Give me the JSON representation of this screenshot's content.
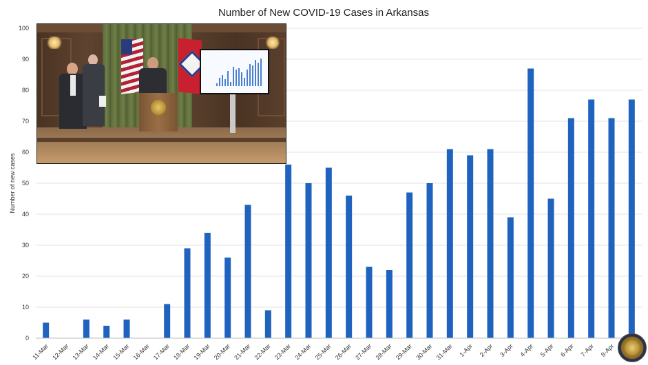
{
  "chart_data": {
    "type": "bar",
    "title": "Number of New COVID-19 Cases in Arkansas",
    "xlabel": "",
    "ylabel": "Number of new cases",
    "ylim": [
      0,
      100
    ],
    "yticks": [
      0,
      10,
      20,
      30,
      40,
      50,
      60,
      70,
      80,
      90,
      100
    ],
    "grid": true,
    "bar_color": "#1f63bf",
    "categories": [
      "11-Mar",
      "12-Mar",
      "13-Mar",
      "14-Mar",
      "15-Mar",
      "16-Mar",
      "17-Mar",
      "18-Mar",
      "19-Mar",
      "20-Mar",
      "21-Mar",
      "22-Mar",
      "23-Mar",
      "24-Mar",
      "25-Mar",
      "26-Mar",
      "27-Mar",
      "28-Mar",
      "29-Mar",
      "30-Mar",
      "31-Mar",
      "1-Apr",
      "2-Apr",
      "3-Apr",
      "4-Apr",
      "5-Apr",
      "6-Apr",
      "7-Apr",
      "8-Apr",
      "9-Apr"
    ],
    "values": [
      5,
      0,
      6,
      4,
      6,
      0,
      11,
      29,
      34,
      26,
      43,
      9,
      56,
      50,
      55,
      46,
      23,
      22,
      47,
      50,
      61,
      59,
      61,
      39,
      87,
      45,
      71,
      77,
      71,
      77
    ]
  }
}
